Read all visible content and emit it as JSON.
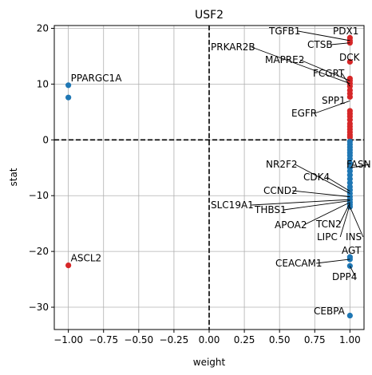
{
  "chart_data": {
    "type": "scatter",
    "title": "USF2",
    "xlabel": "weight",
    "ylabel": "stat",
    "xlim": [
      -1.1,
      1.1
    ],
    "ylim": [
      -34,
      20.5
    ],
    "x_ticks": [
      -1.0,
      -0.75,
      -0.5,
      -0.25,
      0.0,
      0.25,
      0.5,
      0.75,
      1.0
    ],
    "x_tick_labels": [
      "−1.00",
      "−0.75",
      "−0.50",
      "−0.25",
      "0.00",
      "0.25",
      "0.50",
      "0.75",
      "1.00"
    ],
    "y_ticks": [
      -30,
      -20,
      -10,
      0,
      10,
      20
    ],
    "y_tick_labels": [
      "−30",
      "−20",
      "−10",
      "0",
      "10",
      "20"
    ],
    "grid": true,
    "reference_lines": {
      "x": 0,
      "y": 0,
      "style": "dashed",
      "color": "#000000"
    },
    "colors": {
      "positive": "#d62728",
      "negative": "#1f77b4"
    },
    "points_weight_neg1": [
      {
        "x": -1.0,
        "y": 9.8,
        "color": "#1f77b4",
        "label": "PPARGC1A"
      },
      {
        "x": -1.0,
        "y": 7.6,
        "color": "#1f77b4",
        "label": ""
      },
      {
        "x": -1.0,
        "y": -22.5,
        "color": "#d62728",
        "label": "ASCL2"
      }
    ],
    "points_weight_1_red": [
      18.3,
      17.8,
      17.4,
      14.0,
      11.0,
      10.6,
      10.1,
      9.6,
      8.9,
      8.3,
      7.7,
      5.2,
      4.7,
      4.2,
      3.6,
      2.9,
      2.4,
      1.9,
      1.4,
      0.9,
      0.5
    ],
    "points_weight_1_blue": [
      -0.3,
      -0.8,
      -1.3,
      -1.8,
      -2.3,
      -2.8,
      -3.4,
      -4.2,
      -5.0,
      -5.6,
      -6.3,
      -7.0,
      -7.7,
      -8.4,
      -9.0,
      -9.6,
      -10.2,
      -10.7,
      -11.2,
      -11.6,
      -12.0,
      -21.0,
      -21.4,
      -22.6,
      -31.5
    ],
    "annotations": [
      {
        "label": "TGFB1",
        "x": 1.0,
        "y": 17.8
      },
      {
        "label": "PDX1",
        "x": 1.0,
        "y": 18.3
      },
      {
        "label": "CTSB",
        "x": 1.0,
        "y": 17.4
      },
      {
        "label": "DCK",
        "x": 1.0,
        "y": 14.0
      },
      {
        "label": "PRKAR2B",
        "x": 1.0,
        "y": 10.1
      },
      {
        "label": "MAPRE2",
        "x": 1.0,
        "y": 10.6
      },
      {
        "label": "FCGRT",
        "x": 1.0,
        "y": 9.6
      },
      {
        "label": "SPP1",
        "x": 1.0,
        "y": 7.7
      },
      {
        "label": "EGFR",
        "x": 1.0,
        "y": 7.0
      },
      {
        "label": "FASN",
        "x": 1.0,
        "y": -5.0
      },
      {
        "label": "NR2F2",
        "x": 1.0,
        "y": -9.6
      },
      {
        "label": "CDK4",
        "x": 1.0,
        "y": -9.2
      },
      {
        "label": "CCND2",
        "x": 1.0,
        "y": -10.2
      },
      {
        "label": "SLC19A1",
        "x": 1.0,
        "y": -10.7
      },
      {
        "label": "THBS1",
        "x": 1.0,
        "y": -10.9
      },
      {
        "label": "TCN2",
        "x": 1.0,
        "y": -11.3
      },
      {
        "label": "APOA2",
        "x": 1.0,
        "y": -11.2
      },
      {
        "label": "LIPC",
        "x": 1.0,
        "y": -11.6
      },
      {
        "label": "INS",
        "x": 1.0,
        "y": -12.0
      },
      {
        "label": "AGT",
        "x": 1.0,
        "y": -21.0
      },
      {
        "label": "CEACAM1",
        "x": 1.0,
        "y": -21.4
      },
      {
        "label": "DPP4",
        "x": 1.0,
        "y": -22.6
      },
      {
        "label": "CEBPA",
        "x": 1.0,
        "y": -31.5
      }
    ]
  }
}
